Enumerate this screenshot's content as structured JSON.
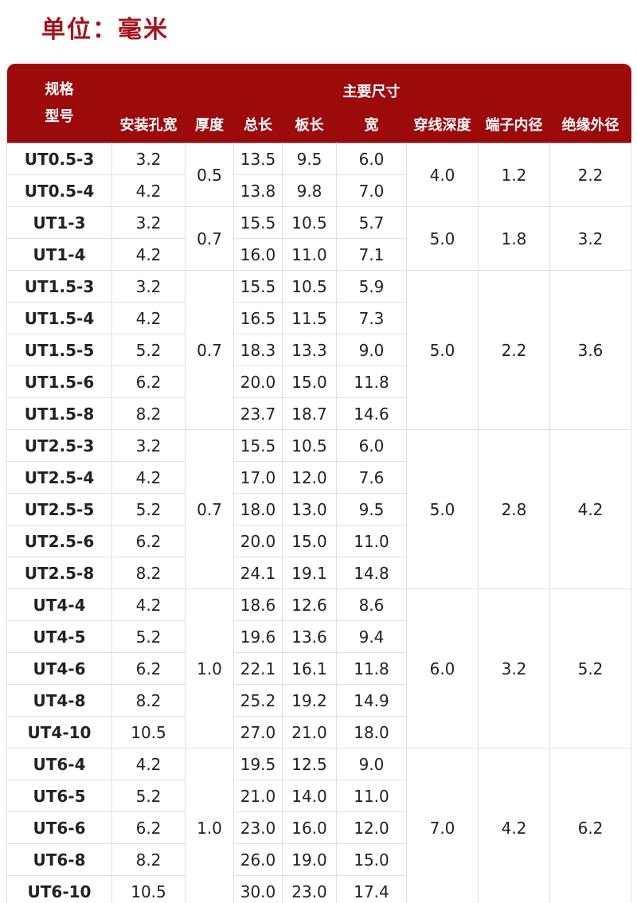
{
  "unit_label": "单位：毫米",
  "table": {
    "header": {
      "spec": "规格",
      "model": "型号",
      "main": "主要尺寸",
      "columns": [
        "安装孔宽",
        "厚度",
        "总长",
        "板长",
        "宽",
        "穿线深度",
        "端子内径",
        "绝缘外径"
      ]
    },
    "groups": [
      {
        "thickness": "0.5",
        "depth": "4.0",
        "inner": "1.2",
        "outer": "2.2",
        "rows": [
          [
            "UT0.5-3",
            "3.2",
            "13.5",
            "9.5",
            "6.0"
          ],
          [
            "UT0.5-4",
            "4.2",
            "13.8",
            "9.8",
            "7.0"
          ]
        ]
      },
      {
        "thickness": "0.7",
        "depth": "5.0",
        "inner": "1.8",
        "outer": "3.2",
        "rows": [
          [
            "UT1-3",
            "3.2",
            "15.5",
            "10.5",
            "5.7"
          ],
          [
            "UT1-4",
            "4.2",
            "16.0",
            "11.0",
            "7.1"
          ]
        ]
      },
      {
        "thickness": "0.7",
        "depth": "5.0",
        "inner": "2.2",
        "outer": "3.6",
        "rows": [
          [
            "UT1.5-3",
            "3.2",
            "15.5",
            "10.5",
            "5.9"
          ],
          [
            "UT1.5-4",
            "4.2",
            "16.5",
            "11.5",
            "7.3"
          ],
          [
            "UT1.5-5",
            "5.2",
            "18.3",
            "13.3",
            "9.0"
          ],
          [
            "UT1.5-6",
            "6.2",
            "20.0",
            "15.0",
            "11.8"
          ],
          [
            "UT1.5-8",
            "8.2",
            "23.7",
            "18.7",
            "14.6"
          ]
        ]
      },
      {
        "thickness": "0.7",
        "depth": "5.0",
        "inner": "2.8",
        "outer": "4.2",
        "rows": [
          [
            "UT2.5-3",
            "3.2",
            "15.5",
            "10.5",
            "6.0"
          ],
          [
            "UT2.5-4",
            "4.2",
            "17.0",
            "12.0",
            "7.6"
          ],
          [
            "UT2.5-5",
            "5.2",
            "18.0",
            "13.0",
            "9.5"
          ],
          [
            "UT2.5-6",
            "6.2",
            "20.0",
            "15.0",
            "11.0"
          ],
          [
            "UT2.5-8",
            "8.2",
            "24.1",
            "19.1",
            "14.8"
          ]
        ]
      },
      {
        "thickness": "1.0",
        "depth": "6.0",
        "inner": "3.2",
        "outer": "5.2",
        "rows": [
          [
            "UT4-4",
            "4.2",
            "18.6",
            "12.6",
            "8.6"
          ],
          [
            "UT4-5",
            "5.2",
            "19.6",
            "13.6",
            "9.4"
          ],
          [
            "UT4-6",
            "6.2",
            "22.1",
            "16.1",
            "11.8"
          ],
          [
            "UT4-8",
            "8.2",
            "25.2",
            "19.2",
            "14.9"
          ],
          [
            "UT4-10",
            "10.5",
            "27.0",
            "21.0",
            "18.0"
          ]
        ]
      },
      {
        "thickness": "1.0",
        "depth": "7.0",
        "inner": "4.2",
        "outer": "6.2",
        "rows": [
          [
            "UT6-4",
            "4.2",
            "19.5",
            "12.5",
            "9.0"
          ],
          [
            "UT6-5",
            "5.2",
            "21.0",
            "14.0",
            "11.0"
          ],
          [
            "UT6-6",
            "6.2",
            "23.0",
            "16.0",
            "12.0"
          ],
          [
            "UT6-8",
            "8.2",
            "26.0",
            "19.0",
            "15.0"
          ],
          [
            "UT6-10",
            "10.5",
            "30.0",
            "23.0",
            "17.4"
          ]
        ]
      }
    ]
  }
}
